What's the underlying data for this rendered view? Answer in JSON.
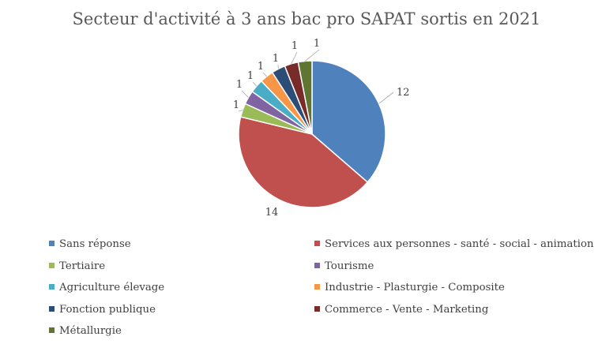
{
  "chart_data": {
    "type": "pie",
    "title": "Secteur d'activité à 3 ans bac pro SAPAT sortis en 2021",
    "slices": [
      {
        "label": "Sans réponse",
        "value": 12,
        "color": "#4f81bd"
      },
      {
        "label": "Services aux personnes - santé - social - animation",
        "value": 14,
        "color": "#c0504d"
      },
      {
        "label": "Tertiaire",
        "value": 1,
        "color": "#9bbb59"
      },
      {
        "label": "Tourisme",
        "value": 1,
        "color": "#8064a2"
      },
      {
        "label": "Agriculture élevage",
        "value": 1,
        "color": "#4bacc6"
      },
      {
        "label": "Industrie - Plasturgie - Composite",
        "value": 1,
        "color": "#f79646"
      },
      {
        "label": "Fonction publique",
        "value": 1,
        "color": "#2c4d75"
      },
      {
        "label": "Commerce - Vente - Marketing",
        "value": 1,
        "color": "#772c2a"
      },
      {
        "label": "Métallurgie",
        "value": 1,
        "color": "#5f7530"
      }
    ],
    "legend_position": "bottom",
    "data_labels": true
  }
}
